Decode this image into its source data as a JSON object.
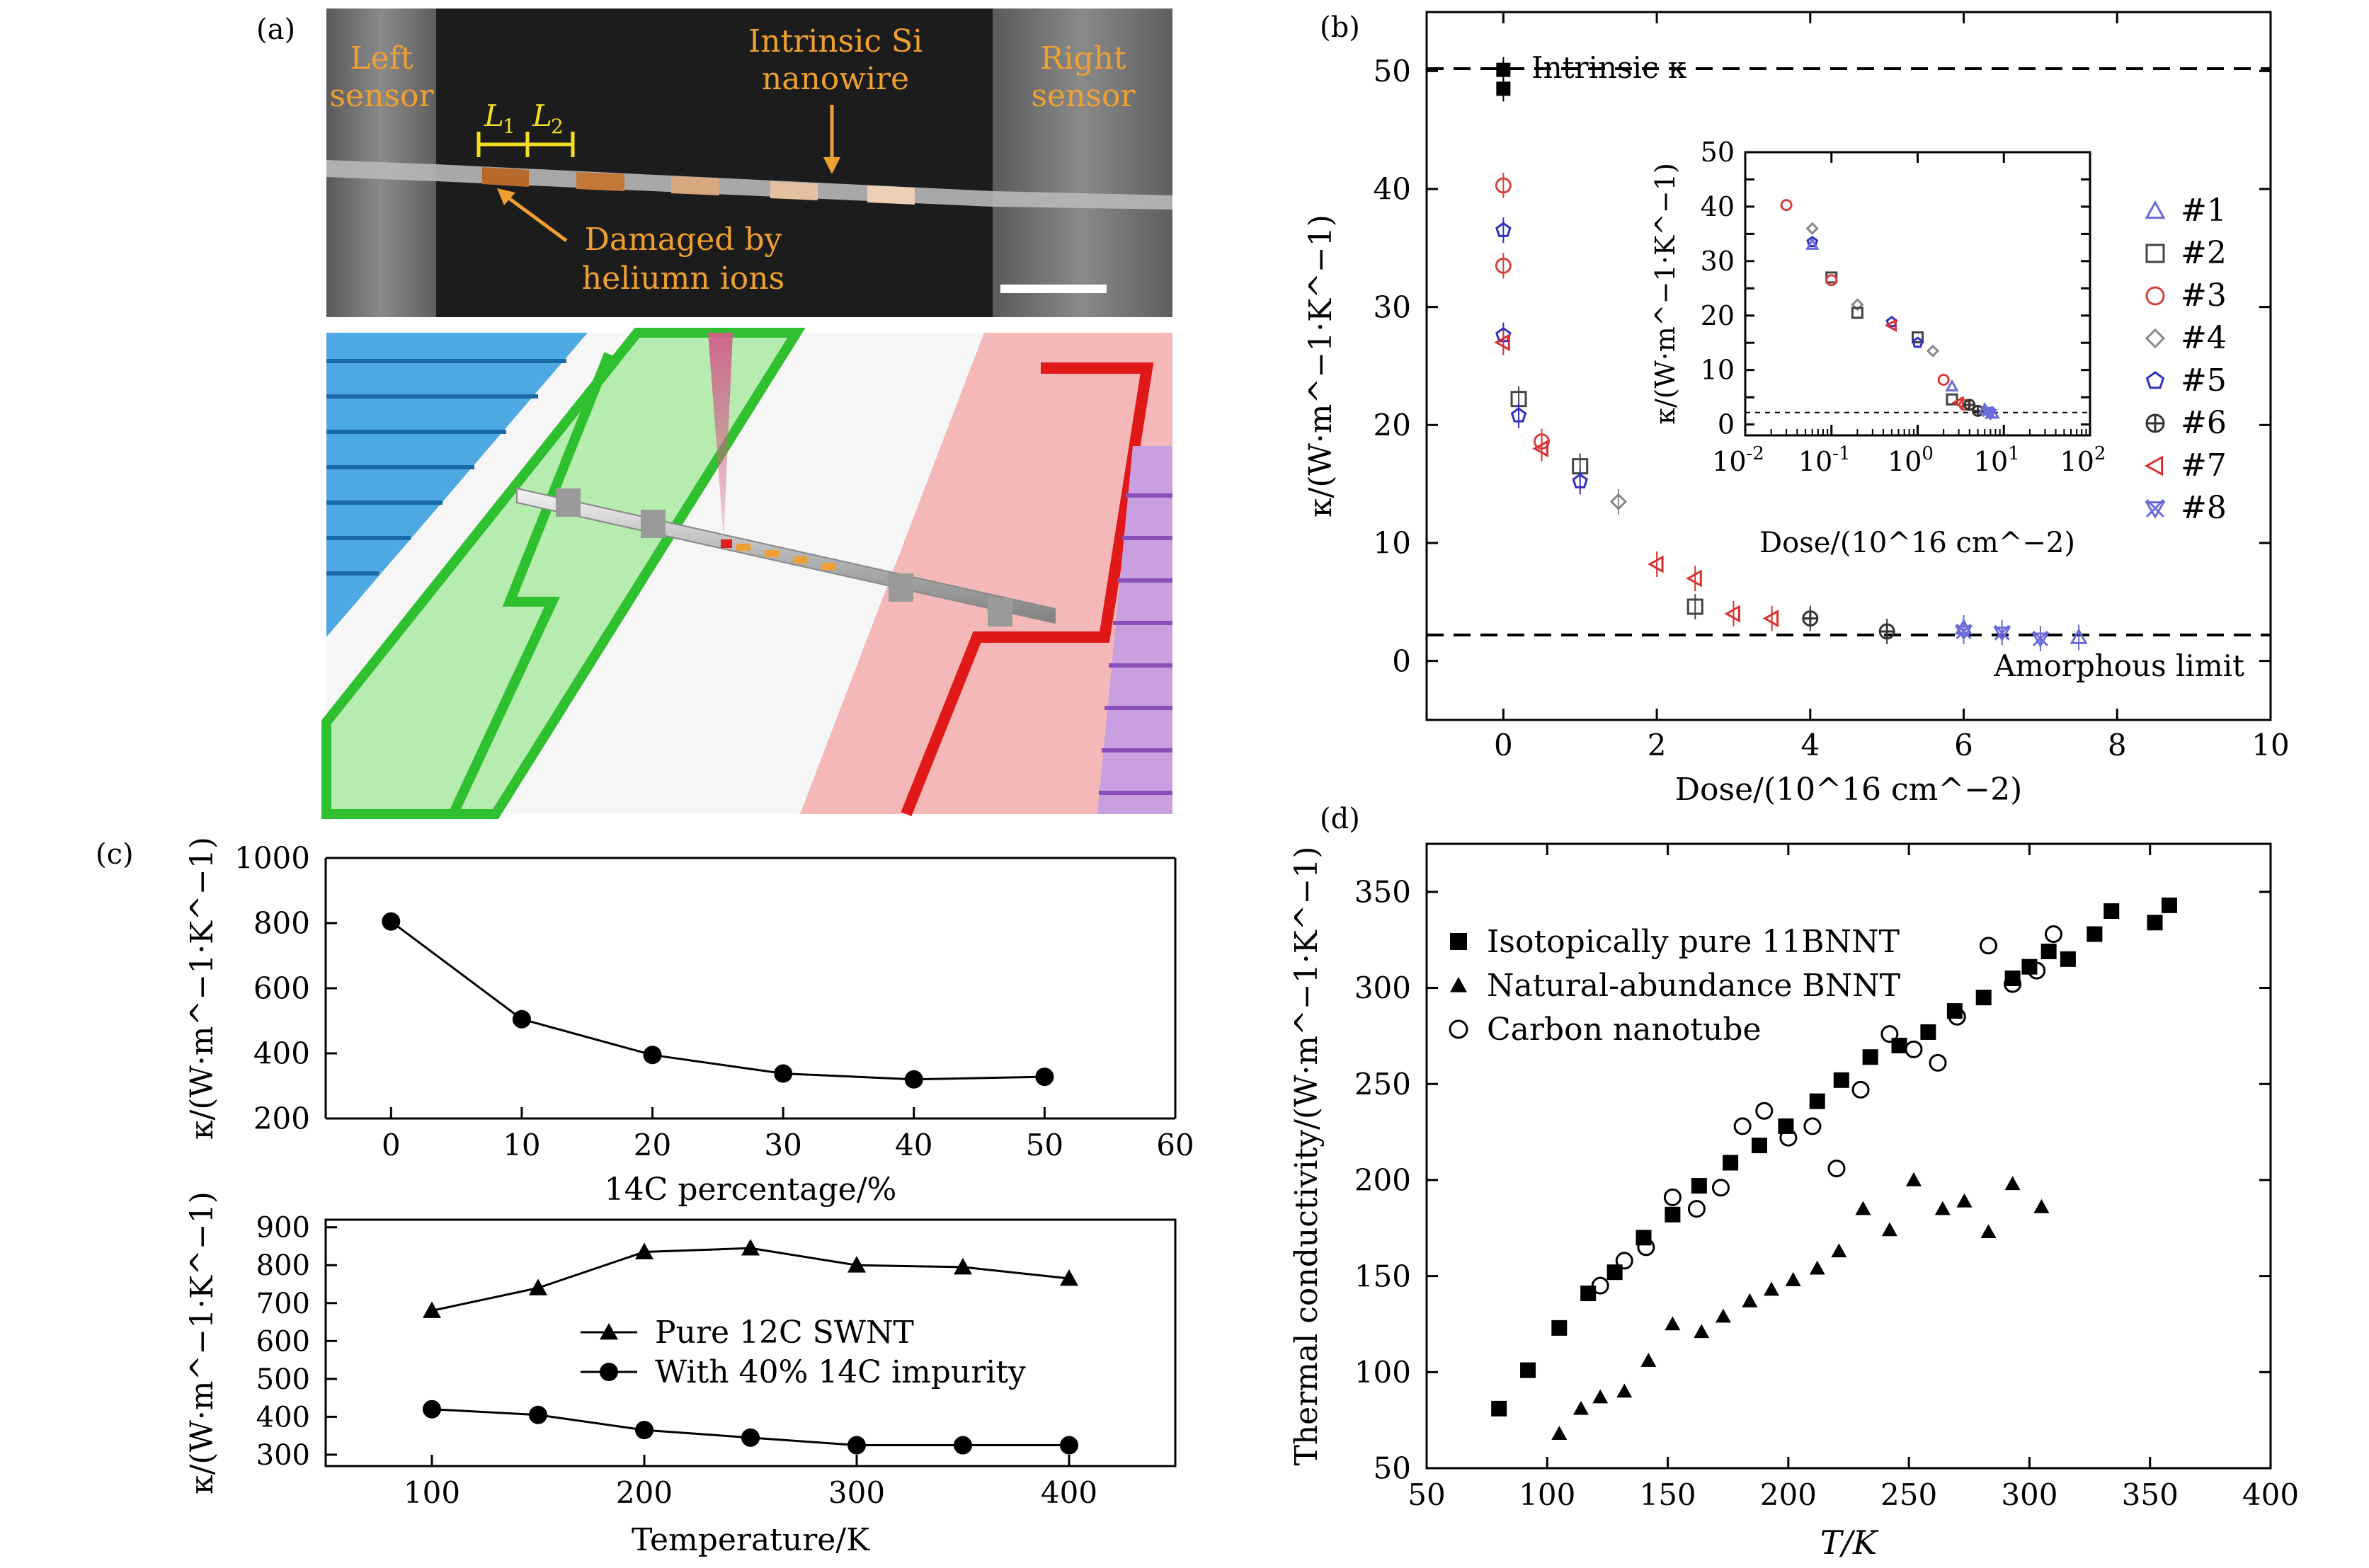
{
  "panel_labels": {
    "a": "(a)",
    "b": "(b)",
    "c": "(c)",
    "d": "(d)"
  },
  "panel_a": {
    "left_sensor": [
      "Left",
      "sensor"
    ],
    "right_sensor": [
      "Right",
      "sensor"
    ],
    "nanowire_label": [
      "Intrinsic Si",
      "nanowire"
    ],
    "damage_label": [
      "Damaged by",
      "heliumn ions"
    ],
    "segment_labels": [
      "L",
      "1",
      "L",
      "2"
    ],
    "colors": {
      "label_text": "#f0a030",
      "sensor_left": "#7fd87f",
      "sensor_right": "#f4a8a8",
      "electrode_green": "#2ec02e",
      "electrode_red": "#e01818",
      "comb_blue": "#3ca0e0",
      "comb_purple": "#c8a0e0",
      "beam": "#d0608a"
    }
  },
  "chart_data": [
    {
      "id": "b",
      "type": "scatter",
      "xlabel": "Dose/(10^16 cm^−2)",
      "ylabel": "κ/(W·m^−1·K^−1)",
      "xlim": [
        -1,
        10
      ],
      "ylim": [
        -5,
        55
      ],
      "xticks": [
        0,
        2,
        4,
        6,
        8,
        10
      ],
      "yticks": [
        0,
        10,
        20,
        30,
        40,
        50
      ],
      "reference_lines": [
        {
          "label": "Intrinsic κ",
          "y": 50.2
        },
        {
          "label": "Amorphous limit",
          "y": 2.2
        }
      ],
      "series": [
        {
          "name": "#1",
          "marker": "triangle-up",
          "color": "#6a6ad8",
          "points": [
            [
              6.0,
              2.8
            ],
            [
              7.5,
              2.0
            ]
          ]
        },
        {
          "name": "#2",
          "marker": "square-open",
          "color": "#444444",
          "points": [
            [
              0.2,
              22.2
            ],
            [
              1.0,
              16.5
            ],
            [
              2.5,
              4.6
            ]
          ]
        },
        {
          "name": "#3",
          "marker": "circle-open",
          "color": "#d84040",
          "points": [
            [
              0.0,
              40.3
            ],
            [
              0.0,
              33.5
            ],
            [
              0.5,
              18.6
            ]
          ]
        },
        {
          "name": "#4",
          "marker": "diamond-open",
          "color": "#888888",
          "points": [
            [
              1.5,
              13.5
            ]
          ]
        },
        {
          "name": "#5",
          "marker": "pentagon-open",
          "color": "#3030c0",
          "points": [
            [
              0.0,
              36.5
            ],
            [
              0.0,
              27.6
            ],
            [
              0.2,
              20.8
            ],
            [
              1.0,
              15.2
            ]
          ]
        },
        {
          "name": "#6",
          "marker": "circle-cross",
          "color": "#333333",
          "points": [
            [
              4.0,
              3.6
            ],
            [
              5.0,
              2.5
            ]
          ]
        },
        {
          "name": "#7",
          "marker": "triangle-left",
          "color": "#d83030",
          "points": [
            [
              0.0,
              27.0
            ],
            [
              0.5,
              18.0
            ],
            [
              2.0,
              8.2
            ],
            [
              2.5,
              7.0
            ],
            [
              3.0,
              4.0
            ],
            [
              3.5,
              3.6
            ]
          ]
        },
        {
          "name": "#8",
          "marker": "star-x",
          "color": "#6a6ad8",
          "points": [
            [
              6.0,
              2.5
            ],
            [
              6.5,
              2.4
            ],
            [
              7.0,
              1.9
            ]
          ]
        },
        {
          "name": "",
          "marker": "square-filled",
          "color": "#000000",
          "points": [
            [
              0.0,
              50.1
            ],
            [
              0.0,
              48.5
            ]
          ]
        }
      ],
      "inset": {
        "xlabel": "Dose/(10^16 cm^−2)",
        "ylabel": "κ/(W·m^−1·K^−1)",
        "xscale": "log",
        "xlim": [
          0.01,
          100
        ],
        "ylim": [
          -2,
          50
        ],
        "xticks": [
          "10^-2",
          "10^-1",
          "10^0",
          "10^1",
          "10^2"
        ],
        "yticks": [
          0,
          5,
          10,
          15,
          20,
          25,
          30,
          35,
          40,
          45,
          50
        ],
        "reference_y": 2.2,
        "points": [
          [
            0.03,
            40.3,
            "#3"
          ],
          [
            0.06,
            36.0,
            "#4"
          ],
          [
            0.06,
            33.5,
            "#5"
          ],
          [
            0.06,
            33.0,
            "#1"
          ],
          [
            0.1,
            27.0,
            "#2"
          ],
          [
            0.1,
            26.5,
            "#3"
          ],
          [
            0.2,
            22.0,
            "#4"
          ],
          [
            0.2,
            20.5,
            "#2"
          ],
          [
            0.5,
            18.8,
            "#5"
          ],
          [
            0.5,
            18.2,
            "#7"
          ],
          [
            1.0,
            16.0,
            "#2"
          ],
          [
            1.0,
            15.0,
            "#5"
          ],
          [
            1.5,
            13.5,
            "#4"
          ],
          [
            2.0,
            8.2,
            "#3"
          ],
          [
            2.5,
            7.0,
            "#1"
          ],
          [
            2.5,
            4.6,
            "#2"
          ],
          [
            3.0,
            4.0,
            "#7"
          ],
          [
            3.5,
            3.6,
            "#3"
          ],
          [
            4.0,
            3.6,
            "#6"
          ],
          [
            5.0,
            2.5,
            "#6"
          ],
          [
            6.0,
            2.8,
            "#1"
          ],
          [
            6.5,
            2.4,
            "#8"
          ],
          [
            7.0,
            2.0,
            "#8"
          ],
          [
            7.5,
            2.0,
            "#1"
          ]
        ]
      }
    },
    {
      "id": "c-top",
      "type": "line",
      "xlabel": "14C percentage/%",
      "ylabel": "κ/(W·m^−1·K^−1)",
      "xlim": [
        -5,
        60
      ],
      "ylim": [
        200,
        1000
      ],
      "xticks": [
        0,
        10,
        20,
        30,
        40,
        50,
        60
      ],
      "yticks": [
        200,
        400,
        600,
        800,
        1000
      ],
      "x": [
        0,
        10,
        20,
        30,
        40,
        50
      ],
      "series": [
        {
          "name": "",
          "marker": "circle-filled",
          "values": [
            805,
            505,
            395,
            338,
            320,
            328
          ]
        }
      ]
    },
    {
      "id": "c-bottom",
      "type": "line",
      "xlabel": "Temperature/K",
      "ylabel": "κ/(W·m^−1·K^−1)",
      "xlim": [
        50,
        450
      ],
      "ylim": [
        270,
        920
      ],
      "xticks": [
        100,
        200,
        300,
        400
      ],
      "yticks": [
        300,
        400,
        500,
        600,
        700,
        800,
        900
      ],
      "x": [
        100,
        150,
        200,
        250,
        300,
        350,
        400
      ],
      "series": [
        {
          "name": "Pure 12C SWNT",
          "marker": "triangle-filled",
          "values": [
            680,
            740,
            835,
            845,
            800,
            795,
            765
          ]
        },
        {
          "name": "With 40% 14C impurity",
          "marker": "circle-filled",
          "values": [
            420,
            405,
            365,
            345,
            325,
            325,
            325
          ]
        }
      ]
    },
    {
      "id": "d",
      "type": "scatter",
      "xlabel": "T/K",
      "ylabel": "Thermal conductivity/(W·m^−1·K^−1)",
      "xlim": [
        50,
        400
      ],
      "ylim": [
        50,
        375
      ],
      "xticks": [
        50,
        100,
        150,
        200,
        250,
        300,
        350,
        400
      ],
      "yticks": [
        50,
        100,
        150,
        200,
        250,
        300,
        350
      ],
      "series": [
        {
          "name": "Isotopically pure 11BNNT",
          "marker": "square-filled",
          "points": [
            [
              80,
              81
            ],
            [
              92,
              101
            ],
            [
              105,
              123
            ],
            [
              117,
              141
            ],
            [
              128,
              152
            ],
            [
              140,
              170
            ],
            [
              152,
              182
            ],
            [
              163,
              197
            ],
            [
              176,
              209
            ],
            [
              188,
              218
            ],
            [
              199,
              228
            ],
            [
              212,
              241
            ],
            [
              222,
              252
            ],
            [
              234,
              264
            ],
            [
              246,
              270
            ],
            [
              258,
              277
            ],
            [
              269,
              288
            ],
            [
              281,
              295
            ],
            [
              293,
              305
            ],
            [
              300,
              311
            ],
            [
              308,
              319
            ],
            [
              316,
              315
            ],
            [
              327,
              328
            ],
            [
              334,
              340
            ],
            [
              352,
              334
            ],
            [
              358,
              343
            ]
          ]
        },
        {
          "name": "Natural-abundance BNNT",
          "marker": "triangle-filled",
          "points": [
            [
              105,
              68
            ],
            [
              114,
              81
            ],
            [
              122,
              87
            ],
            [
              132,
              90
            ],
            [
              142,
              106
            ],
            [
              152,
              125
            ],
            [
              164,
              121
            ],
            [
              173,
              129
            ],
            [
              184,
              137
            ],
            [
              193,
              143
            ],
            [
              202,
              148
            ],
            [
              212,
              154
            ],
            [
              221,
              163
            ],
            [
              231,
              185
            ],
            [
              242,
              174
            ],
            [
              252,
              200
            ],
            [
              264,
              185
            ],
            [
              273,
              189
            ],
            [
              283,
              173
            ],
            [
              293,
              198
            ],
            [
              305,
              186
            ]
          ]
        },
        {
          "name": "Carbon nanotube",
          "marker": "circle-open",
          "points": [
            [
              122,
              145
            ],
            [
              132,
              158
            ],
            [
              141,
              165
            ],
            [
              152,
              191
            ],
            [
              162,
              185
            ],
            [
              172,
              196
            ],
            [
              181,
              228
            ],
            [
              190,
              236
            ],
            [
              200,
              222
            ],
            [
              210,
              228
            ],
            [
              220,
              206
            ],
            [
              230,
              247
            ],
            [
              242,
              276
            ],
            [
              252,
              268
            ],
            [
              262,
              261
            ],
            [
              270,
              285
            ],
            [
              283,
              322
            ],
            [
              293,
              302
            ],
            [
              303,
              309
            ],
            [
              310,
              328
            ]
          ]
        }
      ]
    }
  ]
}
